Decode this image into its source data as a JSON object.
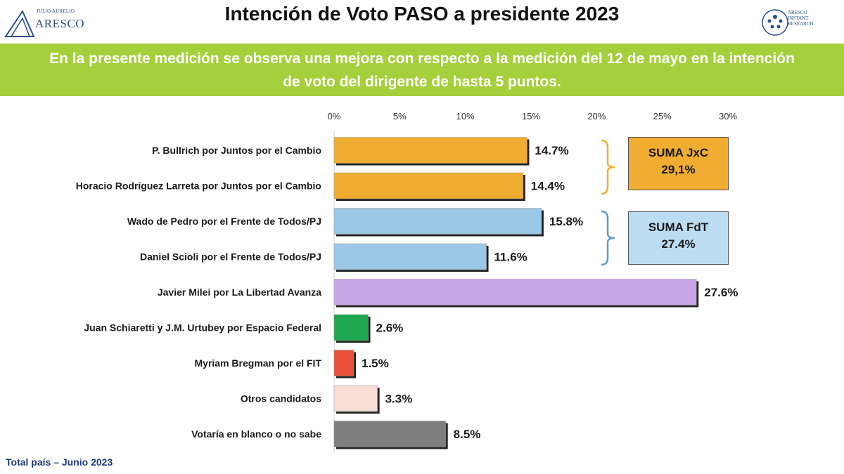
{
  "header": {
    "title": "Intención de Voto PASO a presidente 2023",
    "logo_left_sub": "JULIO AURELIO",
    "logo_left_main": "ARESCO",
    "logo_right_lines": [
      "ARESCO",
      "INSTANT",
      "RESEARCH"
    ]
  },
  "banner": {
    "line1": "En la presente medición se observa una mejora con respecto a la medición del 12 de mayo en la intención",
    "line2": "de voto del dirigente de hasta 5 puntos."
  },
  "footer": "Total país – Junio 2023",
  "summaries": {
    "jxc": {
      "label": "SUMA JxC",
      "value": "29,1%",
      "color": "#f0ad32",
      "bracket_color": "#f0ad32"
    },
    "fdt": {
      "label": "SUMA FdT",
      "value": "27.4%",
      "color": "#bcdcf2",
      "bracket_color": "#5b9bd5"
    }
  },
  "chart_data": {
    "type": "bar",
    "orientation": "horizontal",
    "xlim": [
      0,
      30
    ],
    "ticks": [
      "0%",
      "5%",
      "10%",
      "15%",
      "20%",
      "25%",
      "30%"
    ],
    "tick_values": [
      0,
      5,
      10,
      15,
      20,
      25,
      30
    ],
    "axis_position": "top",
    "grid": false,
    "categories": [
      "P. Bullrich por Juntos por el Cambio",
      "Horacio Rodríguez Larreta por Juntos por el Cambio",
      "Wado de Pedro por el Frente de Todos/PJ",
      "Daniel Scioli por el Frente de Todos/PJ",
      "Javier Milei por La Libertad Avanza",
      "Juan Schiaretti y J.M. Urtubey por Espacio Federal",
      "Myriam Bregman por el FIT",
      "Otros candidatos",
      "Votaría en blanco o no sabe"
    ],
    "values": [
      14.7,
      14.4,
      15.8,
      11.6,
      27.6,
      2.6,
      1.5,
      3.3,
      8.5
    ],
    "value_labels": [
      "14.7%",
      "14.4%",
      "15.8%",
      "11.6%",
      "27.6%",
      "2.6%",
      "1.5%",
      "3.3%",
      "8.5%"
    ],
    "colors": [
      "#f0ad32",
      "#f0ad32",
      "#9cc8e8",
      "#9cc8e8",
      "#c9a5e6",
      "#1fa84f",
      "#e8503a",
      "#f8dcd6",
      "#7f7f7f"
    ]
  }
}
